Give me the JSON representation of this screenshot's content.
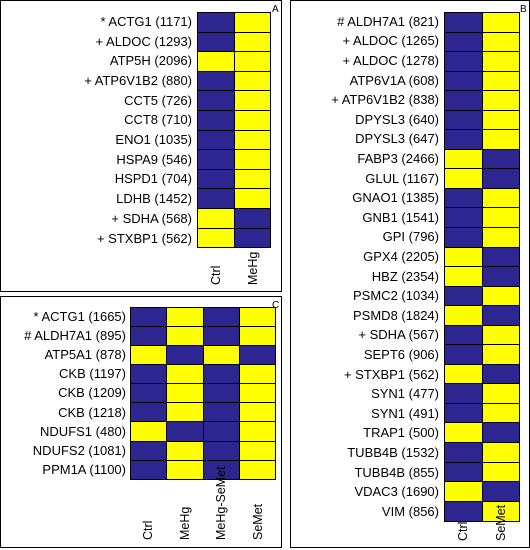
{
  "colors": {
    "blue": "#2e2690",
    "yellow": "#ffff00"
  },
  "panels": {
    "A": {
      "letter": "A",
      "columns": [
        "Ctrl",
        "MeHg"
      ],
      "rows": [
        {
          "label": "* ACTG1 (1171)",
          "cells": [
            "B",
            "Y"
          ]
        },
        {
          "label": "+ ALDOC (1293)",
          "cells": [
            "B",
            "Y"
          ]
        },
        {
          "label": "ATP5H (2096)",
          "cells": [
            "Y",
            "Y"
          ]
        },
        {
          "label": "+ ATP6V1B2 (880)",
          "cells": [
            "B",
            "Y"
          ]
        },
        {
          "label": "CCT5 (726)",
          "cells": [
            "B",
            "Y"
          ]
        },
        {
          "label": "CCT8 (710)",
          "cells": [
            "B",
            "Y"
          ]
        },
        {
          "label": "ENO1 (1035)",
          "cells": [
            "B",
            "Y"
          ]
        },
        {
          "label": "HSPA9 (546)",
          "cells": [
            "B",
            "Y"
          ]
        },
        {
          "label": "HSPD1 (704)",
          "cells": [
            "B",
            "Y"
          ]
        },
        {
          "label": "LDHB (1452)",
          "cells": [
            "B",
            "Y"
          ]
        },
        {
          "label": "+ SDHA (568)",
          "cells": [
            "Y",
            "B"
          ]
        },
        {
          "label": "+ STXBP1 (562)",
          "cells": [
            "Y",
            "B"
          ]
        }
      ]
    },
    "B": {
      "letter": "B",
      "columns": [
        "Ctrl",
        "SeMet"
      ],
      "rows": [
        {
          "label": "# ALDH7A1 (821)",
          "cells": [
            "B",
            "Y"
          ]
        },
        {
          "label": "+ ALDOC (1265)",
          "cells": [
            "B",
            "Y"
          ]
        },
        {
          "label": "+ ALDOC (1278)",
          "cells": [
            "B",
            "Y"
          ]
        },
        {
          "label": "ATP6V1A (608)",
          "cells": [
            "B",
            "Y"
          ]
        },
        {
          "label": "+ ATP6V1B2 (838)",
          "cells": [
            "B",
            "Y"
          ]
        },
        {
          "label": "DPYSL3 (640)",
          "cells": [
            "B",
            "Y"
          ]
        },
        {
          "label": "DPYSL3 (647)",
          "cells": [
            "B",
            "Y"
          ]
        },
        {
          "label": "FABP3 (2466)",
          "cells": [
            "Y",
            "B"
          ]
        },
        {
          "label": "GLUL (1167)",
          "cells": [
            "Y",
            "B"
          ]
        },
        {
          "label": "GNAO1 (1385)",
          "cells": [
            "B",
            "Y"
          ]
        },
        {
          "label": "GNB1 (1541)",
          "cells": [
            "B",
            "Y"
          ]
        },
        {
          "label": "GPI (796)",
          "cells": [
            "B",
            "Y"
          ]
        },
        {
          "label": "GPX4 (2205)",
          "cells": [
            "Y",
            "B"
          ]
        },
        {
          "label": "HBZ (2354)",
          "cells": [
            "Y",
            "B"
          ]
        },
        {
          "label": "PSMC2 (1034)",
          "cells": [
            "B",
            "Y"
          ]
        },
        {
          "label": "PSMD8 (1824)",
          "cells": [
            "Y",
            "B"
          ]
        },
        {
          "label": "+ SDHA (567)",
          "cells": [
            "B",
            "Y"
          ]
        },
        {
          "label": "SEPT6 (906)",
          "cells": [
            "B",
            "Y"
          ]
        },
        {
          "label": "+ STXBP1 (562)",
          "cells": [
            "Y",
            "B"
          ]
        },
        {
          "label": "SYN1 (477)",
          "cells": [
            "B",
            "Y"
          ]
        },
        {
          "label": "SYN1 (491)",
          "cells": [
            "B",
            "Y"
          ]
        },
        {
          "label": "TRAP1 (500)",
          "cells": [
            "Y",
            "B"
          ]
        },
        {
          "label": "TUBB4B (1532)",
          "cells": [
            "B",
            "Y"
          ]
        },
        {
          "label": "TUBB4B (855)",
          "cells": [
            "B",
            "Y"
          ]
        },
        {
          "label": "VDAC3 (1690)",
          "cells": [
            "Y",
            "B"
          ]
        },
        {
          "label": "VIM (856)",
          "cells": [
            "B",
            "Y"
          ]
        }
      ]
    },
    "C": {
      "letter": "C",
      "columns": [
        "Ctrl",
        "MeHg",
        "MeHg-SeMet",
        "SeMet"
      ],
      "rows": [
        {
          "label": "* ACTG1 (1665)",
          "cells": [
            "B",
            "Y",
            "B",
            "Y"
          ]
        },
        {
          "label": "# ALDH7A1 (895)",
          "cells": [
            "B",
            "Y",
            "B",
            "Y"
          ]
        },
        {
          "label": "ATP5A1 (878)",
          "cells": [
            "Y",
            "B",
            "Y",
            "B"
          ]
        },
        {
          "label": "CKB (1197)",
          "cells": [
            "B",
            "Y",
            "B",
            "Y"
          ]
        },
        {
          "label": "CKB (1209)",
          "cells": [
            "B",
            "Y",
            "B",
            "Y"
          ]
        },
        {
          "label": "CKB (1218)",
          "cells": [
            "B",
            "Y",
            "B",
            "Y"
          ]
        },
        {
          "label": "NDUFS1 (480)",
          "cells": [
            "Y",
            "B",
            "B",
            "Y"
          ]
        },
        {
          "label": "NDUFS2 (1081)",
          "cells": [
            "B",
            "Y",
            "B",
            "Y"
          ]
        },
        {
          "label": "PPM1A (1100)",
          "cells": [
            "B",
            "Y",
            "B",
            "Y"
          ]
        }
      ]
    }
  }
}
